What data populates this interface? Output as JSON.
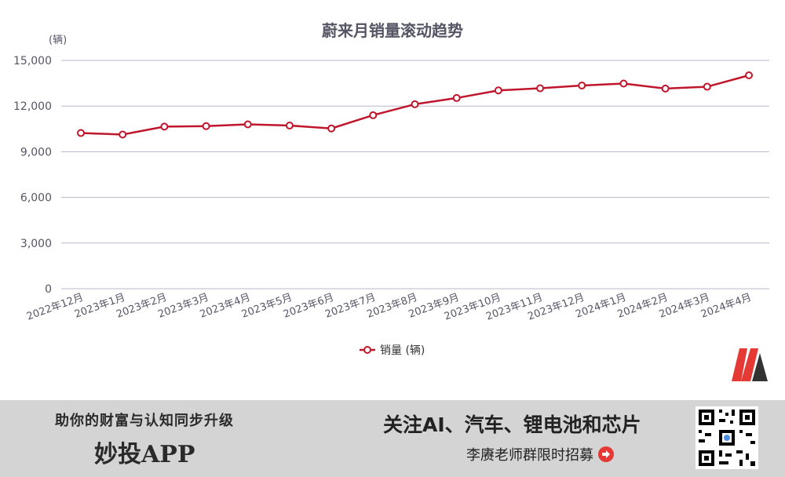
{
  "chart_data": {
    "type": "line",
    "title": "蔚来月销量滚动趋势",
    "unit_label": "(辆)",
    "categories": [
      "2022年12月",
      "2023年1月",
      "2023年2月",
      "2023年3月",
      "2023年4月",
      "2023年5月",
      "2023年6月",
      "2023年7月",
      "2023年8月",
      "2023年9月",
      "2023年10月",
      "2023年11月",
      "2023年12月",
      "2024年1月",
      "2024年2月",
      "2024年3月",
      "2024年4月"
    ],
    "series": [
      {
        "name": "销量 (辆)",
        "values": [
          10230,
          10130,
          10650,
          10680,
          10800,
          10720,
          10530,
          11400,
          12120,
          12530,
          13030,
          13170,
          13350,
          13480,
          13150,
          13270,
          14020
        ]
      }
    ],
    "ylim": [
      0,
      15000
    ],
    "yticks": [
      "0",
      "3,000",
      "6,000",
      "9,000",
      "12,000",
      "15,000"
    ],
    "ytick_values": [
      0,
      3000,
      6000,
      9000,
      12000,
      15000
    ],
    "grid": true,
    "legend_position": "bottom-center",
    "line_color": "#c0162c"
  },
  "logo": {
    "name": "m-logo-icon",
    "colors": [
      "#e53935",
      "#333333"
    ]
  },
  "banner": {
    "left_tagline": "助你的财富与认知同步升级",
    "left_brand": "妙投APP",
    "right_headline": "关注AI、汽车、锂电池和芯片",
    "right_sub": "李赓老师群限时招募",
    "arrow_icon": "arrow-right-circle-icon",
    "qr_icon": "qr-code-icon"
  }
}
